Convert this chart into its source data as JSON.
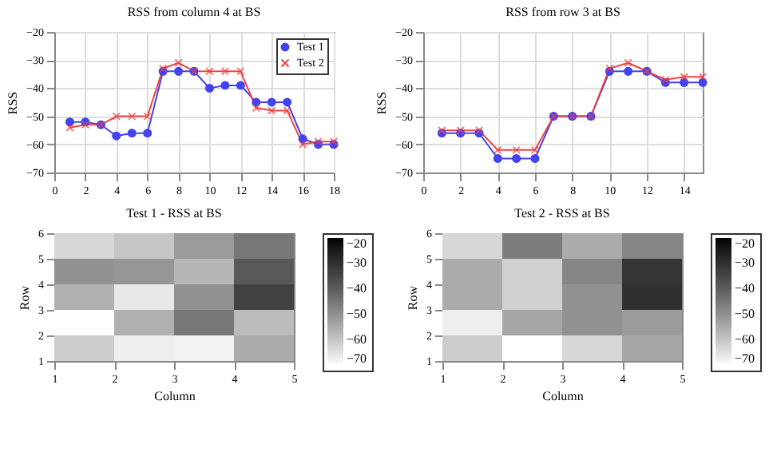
{
  "chart_data": [
    {
      "type": "line",
      "title": "RSS from column 4 at BS",
      "ylabel": "RSS",
      "x": [
        1,
        2,
        3,
        4,
        5,
        6,
        7,
        8,
        9,
        10,
        11,
        12,
        13,
        14,
        15,
        16,
        17,
        18
      ],
      "xlim": [
        0,
        18
      ],
      "xticks": [
        0,
        2,
        4,
        6,
        8,
        10,
        12,
        14,
        16,
        18
      ],
      "ylim": [
        -70,
        -20
      ],
      "yticks": [
        -70,
        -60,
        -50,
        -40,
        -30,
        -20
      ],
      "grid": true,
      "legend": "top right",
      "line_style": "solid",
      "series": [
        {
          "name": "Test 1",
          "color": "#4444ee",
          "marker": "circle",
          "values": [
            -52,
            -52,
            -53,
            -57,
            -56,
            -56,
            -34,
            -34,
            -34,
            -40,
            -39,
            -39,
            -45,
            -45,
            -45,
            -58,
            -60,
            -60
          ]
        },
        {
          "name": "Test 2",
          "color": "#ee4444",
          "marker": "cross",
          "values": [
            -54,
            -53,
            -53,
            -50,
            -50,
            -50,
            -33,
            -31,
            -34,
            -34,
            -34,
            -34,
            -47,
            -48,
            -48,
            -60,
            -59,
            -59
          ]
        }
      ]
    },
    {
      "type": "line",
      "title": "RSS from row 3 at BS",
      "ylabel": "RSS",
      "x": [
        1,
        2,
        3,
        4,
        5,
        6,
        7,
        8,
        9,
        10,
        11,
        12,
        13,
        14,
        15
      ],
      "xlim": [
        0,
        15
      ],
      "xticks": [
        0,
        2,
        4,
        6,
        8,
        10,
        12,
        14
      ],
      "ylim": [
        -70,
        -20
      ],
      "yticks": [
        -70,
        -60,
        -50,
        -40,
        -30,
        -20
      ],
      "grid": true,
      "line_style": "solid",
      "series": [
        {
          "color": "#4444ee",
          "marker": "circle",
          "values": [
            -56,
            -56,
            -56,
            -65,
            -65,
            -65,
            -50,
            -50,
            -50,
            -34,
            -34,
            -34,
            -38,
            -38,
            -38
          ]
        },
        {
          "color": "#ee4444",
          "marker": "cross",
          "values": [
            -55,
            -55,
            -55,
            -62,
            -62,
            -62,
            -50,
            -50,
            -50,
            -33,
            -31,
            -34,
            -37,
            -36,
            -36
          ]
        }
      ]
    },
    {
      "type": "heatmap",
      "title": "Test 1 - RSS at BS",
      "xlabel": "Column",
      "ylabel": "Row",
      "xlim": [
        1,
        5
      ],
      "xticks": [
        1,
        2,
        3,
        4,
        5
      ],
      "ylim": [
        1,
        6
      ],
      "yticks": [
        1,
        2,
        3,
        4,
        5,
        6
      ],
      "clim": [
        -70,
        -20
      ],
      "cticks": [
        -70,
        -60,
        -50,
        -40,
        -30,
        -20
      ],
      "cells": [
        [
          -63,
          -60,
          -52,
          -45
        ],
        [
          -50,
          -51,
          -57,
          -39
        ],
        [
          -56,
          -66,
          -50,
          -34
        ],
        [
          -70,
          -56,
          -45,
          -58
        ],
        [
          -61,
          -67,
          -68,
          -55
        ]
      ]
    },
    {
      "type": "heatmap",
      "title": "Test 2 - RSS at BS",
      "xlabel": "Column",
      "ylabel": "Row",
      "xlim": [
        1,
        5
      ],
      "xticks": [
        1,
        2,
        3,
        4,
        5
      ],
      "ylim": [
        1,
        6
      ],
      "yticks": [
        1,
        2,
        3,
        4,
        5,
        6
      ],
      "clim": [
        -70,
        -20
      ],
      "cticks": [
        -70,
        -60,
        -50,
        -40,
        -30,
        -20
      ],
      "cells": [
        [
          -63,
          -46,
          -55,
          -48
        ],
        [
          -55,
          -62,
          -48,
          -31
        ],
        [
          -55,
          -62,
          -50,
          -30
        ],
        [
          -67,
          -54,
          -50,
          -52
        ],
        [
          -61,
          -70,
          -63,
          -54
        ]
      ]
    }
  ]
}
